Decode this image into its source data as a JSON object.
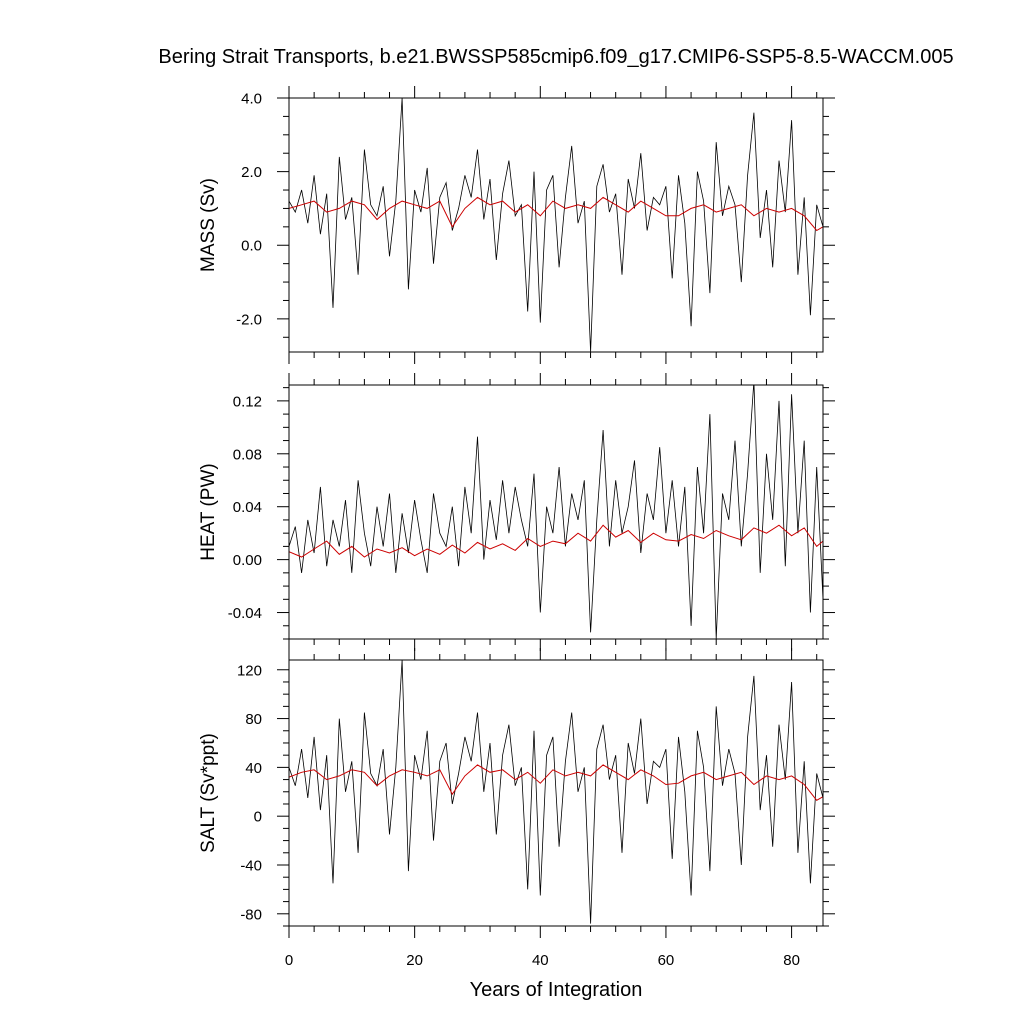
{
  "chart_data": [
    {
      "type": "line",
      "title": "Bering Strait Transports, b.e21.BWSSP585cmip6.f09_g17.CMIP6-SSP5-8.5-WACCM.005",
      "ylabel": "MASS (Sv)",
      "xlabel": "",
      "xlim": [
        0,
        85
      ],
      "ylim": [
        -2.9,
        4.0
      ],
      "yticks": [
        4.0,
        2.0,
        0.0,
        -2.0
      ],
      "ytick_labels": [
        "4.0",
        "2.0",
        "0.0",
        "-2.0"
      ],
      "xticks": [
        0,
        20,
        40,
        60,
        80
      ],
      "grid": false,
      "series": [
        {
          "color": "#000000",
          "x": [
            0,
            1,
            2,
            3,
            4,
            5,
            6,
            7,
            8,
            9,
            10,
            11,
            12,
            13,
            14,
            15,
            16,
            17,
            18,
            19,
            20,
            21,
            22,
            23,
            24,
            25,
            26,
            27,
            28,
            29,
            30,
            31,
            32,
            33,
            34,
            35,
            36,
            37,
            38,
            39,
            40,
            41,
            42,
            43,
            44,
            45,
            46,
            47,
            48,
            49,
            50,
            51,
            52,
            53,
            54,
            55,
            56,
            57,
            58,
            59,
            60,
            61,
            62,
            63,
            64,
            65,
            66,
            67,
            68,
            69,
            70,
            71,
            72,
            73,
            74,
            75,
            76,
            77,
            78,
            79,
            80,
            81,
            82,
            83,
            84,
            85
          ],
          "values": [
            1.2,
            0.9,
            1.5,
            0.6,
            1.9,
            0.3,
            1.4,
            -1.7,
            2.4,
            0.7,
            1.3,
            -0.8,
            2.6,
            1.1,
            0.8,
            1.6,
            -0.3,
            1.2,
            4.0,
            -1.2,
            1.5,
            0.9,
            2.1,
            -0.5,
            1.3,
            1.7,
            0.4,
            1.0,
            1.9,
            1.3,
            2.6,
            0.7,
            1.8,
            -0.4,
            1.4,
            2.3,
            0.8,
            1.1,
            -1.8,
            2.0,
            -2.1,
            1.5,
            1.9,
            -0.6,
            1.3,
            2.7,
            0.6,
            1.2,
            -2.9,
            1.6,
            2.2,
            0.9,
            1.4,
            -0.8,
            1.8,
            1.0,
            2.5,
            0.4,
            1.3,
            1.1,
            1.6,
            -0.9,
            1.9,
            0.6,
            -2.2,
            2.0,
            1.2,
            -1.3,
            2.8,
            0.8,
            1.6,
            1.1,
            -1.0,
            1.9,
            3.6,
            0.2,
            1.5,
            -0.6,
            2.3,
            0.9,
            3.4,
            -0.8,
            1.3,
            -1.9,
            1.1,
            0.5
          ]
        },
        {
          "color": "#cc0000",
          "x": [
            0,
            2,
            4,
            6,
            8,
            10,
            12,
            14,
            16,
            18,
            20,
            22,
            24,
            26,
            28,
            30,
            32,
            34,
            36,
            38,
            40,
            42,
            44,
            46,
            48,
            50,
            52,
            54,
            56,
            58,
            60,
            62,
            64,
            66,
            68,
            70,
            72,
            74,
            76,
            78,
            80,
            82,
            84,
            85
          ],
          "values": [
            1.0,
            1.1,
            1.2,
            0.9,
            1.0,
            1.2,
            1.1,
            0.7,
            1.0,
            1.2,
            1.1,
            1.0,
            1.2,
            0.5,
            1.0,
            1.3,
            1.1,
            1.2,
            0.9,
            1.1,
            0.8,
            1.2,
            1.0,
            1.1,
            1.0,
            1.3,
            1.1,
            0.9,
            1.2,
            1.0,
            0.8,
            0.8,
            1.0,
            1.1,
            0.9,
            1.0,
            1.1,
            0.8,
            1.0,
            0.9,
            1.0,
            0.8,
            0.4,
            0.5
          ]
        }
      ]
    },
    {
      "type": "line",
      "ylabel": "HEAT (PW)",
      "xlabel": "",
      "xlim": [
        0,
        85
      ],
      "ylim": [
        -0.06,
        0.132
      ],
      "yticks": [
        0.12,
        0.08,
        0.04,
        0.0,
        -0.04
      ],
      "ytick_labels": [
        "0.12",
        "0.08",
        "0.04",
        "0.00",
        "-0.04"
      ],
      "xticks": [
        0,
        20,
        40,
        60,
        80
      ],
      "grid": false,
      "series": [
        {
          "color": "#000000",
          "x": [
            0,
            1,
            2,
            3,
            4,
            5,
            6,
            7,
            8,
            9,
            10,
            11,
            12,
            13,
            14,
            15,
            16,
            17,
            18,
            19,
            20,
            21,
            22,
            23,
            24,
            25,
            26,
            27,
            28,
            29,
            30,
            31,
            32,
            33,
            34,
            35,
            36,
            37,
            38,
            39,
            40,
            41,
            42,
            43,
            44,
            45,
            46,
            47,
            48,
            49,
            50,
            51,
            52,
            53,
            54,
            55,
            56,
            57,
            58,
            59,
            60,
            61,
            62,
            63,
            64,
            65,
            66,
            67,
            68,
            69,
            70,
            71,
            72,
            73,
            74,
            75,
            76,
            77,
            78,
            79,
            80,
            81,
            82,
            83,
            84,
            85
          ],
          "values": [
            0.01,
            0.025,
            -0.01,
            0.03,
            0.005,
            0.055,
            -0.005,
            0.03,
            0.01,
            0.045,
            -0.01,
            0.06,
            0.02,
            -0.005,
            0.04,
            0.01,
            0.05,
            -0.01,
            0.035,
            0.005,
            0.045,
            0.015,
            -0.01,
            0.05,
            0.02,
            0.01,
            0.04,
            -0.005,
            0.055,
            0.02,
            0.093,
            0.0,
            0.045,
            0.015,
            0.06,
            0.02,
            0.055,
            0.03,
            0.01,
            0.065,
            -0.04,
            0.04,
            0.02,
            0.07,
            0.01,
            0.05,
            0.03,
            0.06,
            -0.055,
            0.03,
            0.098,
            0.01,
            0.06,
            0.02,
            0.04,
            0.075,
            0.005,
            0.05,
            0.03,
            0.085,
            0.02,
            0.06,
            0.01,
            0.055,
            -0.05,
            0.07,
            0.02,
            0.11,
            -0.06,
            0.05,
            0.03,
            0.09,
            0.01,
            0.065,
            0.135,
            -0.01,
            0.08,
            0.03,
            0.12,
            -0.005,
            0.125,
            0.02,
            0.09,
            -0.04,
            0.07,
            -0.03
          ]
        },
        {
          "color": "#cc0000",
          "x": [
            0,
            2,
            4,
            6,
            8,
            10,
            12,
            14,
            16,
            18,
            20,
            22,
            24,
            26,
            28,
            30,
            32,
            34,
            36,
            38,
            40,
            42,
            44,
            46,
            48,
            50,
            52,
            54,
            56,
            58,
            60,
            62,
            64,
            66,
            68,
            70,
            72,
            74,
            76,
            78,
            80,
            82,
            84,
            85
          ],
          "values": [
            0.006,
            0.002,
            0.008,
            0.014,
            0.004,
            0.01,
            0.002,
            0.008,
            0.005,
            0.009,
            0.003,
            0.008,
            0.004,
            0.011,
            0.005,
            0.013,
            0.008,
            0.012,
            0.007,
            0.016,
            0.01,
            0.014,
            0.012,
            0.02,
            0.014,
            0.026,
            0.017,
            0.022,
            0.013,
            0.02,
            0.015,
            0.014,
            0.019,
            0.016,
            0.022,
            0.018,
            0.015,
            0.024,
            0.02,
            0.026,
            0.018,
            0.024,
            0.01,
            0.014
          ]
        }
      ]
    },
    {
      "type": "line",
      "ylabel": "SALT (Sv*ppt)",
      "xlabel": "Years of Integration",
      "xlim": [
        0,
        85
      ],
      "ylim": [
        -90,
        128
      ],
      "yticks": [
        120,
        80,
        40,
        0,
        -40,
        -80
      ],
      "ytick_labels": [
        "120",
        "80",
        "40",
        "0",
        "-40",
        "-80"
      ],
      "xticks": [
        0,
        20,
        40,
        60,
        80
      ],
      "xtick_labels": [
        "0",
        "20",
        "40",
        "60",
        "80"
      ],
      "grid": false,
      "series": [
        {
          "color": "#000000",
          "x": [
            0,
            1,
            2,
            3,
            4,
            5,
            6,
            7,
            8,
            9,
            10,
            11,
            12,
            13,
            14,
            15,
            16,
            17,
            18,
            19,
            20,
            21,
            22,
            23,
            24,
            25,
            26,
            27,
            28,
            29,
            30,
            31,
            32,
            33,
            34,
            35,
            36,
            37,
            38,
            39,
            40,
            41,
            42,
            43,
            44,
            45,
            46,
            47,
            48,
            49,
            50,
            51,
            52,
            53,
            54,
            55,
            56,
            57,
            58,
            59,
            60,
            61,
            62,
            63,
            64,
            65,
            66,
            67,
            68,
            69,
            70,
            71,
            72,
            73,
            74,
            75,
            76,
            77,
            78,
            79,
            80,
            81,
            82,
            83,
            84,
            85
          ],
          "values": [
            40,
            25,
            55,
            15,
            65,
            5,
            50,
            -55,
            80,
            20,
            45,
            -30,
            85,
            35,
            25,
            55,
            -15,
            40,
            128,
            -45,
            50,
            30,
            70,
            -20,
            45,
            60,
            10,
            35,
            65,
            45,
            85,
            20,
            60,
            -15,
            50,
            75,
            25,
            40,
            -60,
            70,
            -65,
            50,
            65,
            -25,
            45,
            85,
            20,
            40,
            -88,
            55,
            75,
            30,
            50,
            -30,
            60,
            35,
            80,
            10,
            45,
            40,
            55,
            -35,
            65,
            20,
            -65,
            70,
            40,
            -45,
            90,
            25,
            55,
            35,
            -40,
            65,
            115,
            5,
            50,
            -25,
            75,
            30,
            110,
            -30,
            45,
            -55,
            35,
            15
          ]
        },
        {
          "color": "#cc0000",
          "x": [
            0,
            2,
            4,
            6,
            8,
            10,
            12,
            14,
            16,
            18,
            20,
            22,
            24,
            26,
            28,
            30,
            32,
            34,
            36,
            38,
            40,
            42,
            44,
            46,
            48,
            50,
            52,
            54,
            56,
            58,
            60,
            62,
            64,
            66,
            68,
            70,
            72,
            74,
            76,
            78,
            80,
            82,
            84,
            85
          ],
          "values": [
            32,
            36,
            38,
            30,
            33,
            38,
            36,
            25,
            33,
            38,
            36,
            33,
            38,
            18,
            33,
            42,
            36,
            38,
            30,
            36,
            27,
            38,
            33,
            36,
            33,
            42,
            36,
            30,
            38,
            33,
            26,
            27,
            33,
            36,
            30,
            33,
            36,
            26,
            33,
            30,
            33,
            26,
            13,
            16
          ]
        }
      ]
    }
  ]
}
